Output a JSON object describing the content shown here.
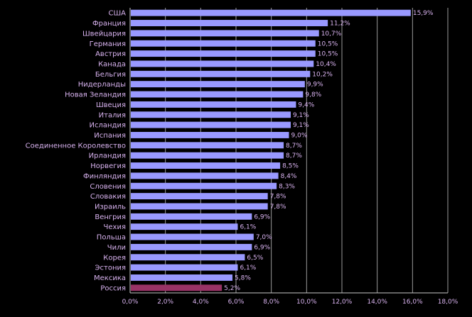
{
  "chart_data": {
    "type": "bar",
    "orientation": "horizontal",
    "categories": [
      "США",
      "Франция",
      "Швейцария",
      "Германия",
      "Австрия",
      "Канада",
      "Бельгия",
      "Нидерланды",
      "Новая Зеландия",
      "Швеция",
      "Италия",
      "Исландия",
      "Испания",
      "Соединенное Королевство",
      "Ирландия",
      "Норвегия",
      "Финляндия",
      "Словения",
      "Словакия",
      "Израиль",
      "Венгрия",
      "Чехия",
      "Польша",
      "Чили",
      "Корея",
      "Эстония",
      "Мексика",
      "Россия"
    ],
    "values": [
      15.9,
      11.2,
      10.7,
      10.5,
      10.5,
      10.4,
      10.2,
      9.9,
      9.8,
      9.4,
      9.1,
      9.1,
      9.0,
      8.7,
      8.7,
      8.5,
      8.4,
      8.3,
      7.8,
      7.8,
      6.9,
      6.1,
      7.0,
      6.9,
      6.5,
      6.1,
      5.8,
      5.2
    ],
    "value_labels": [
      "15,9%",
      "11,2%",
      "10,7%",
      "10,5%",
      "10,5%",
      "10,4%",
      "10,2%",
      "9,9%",
      "9,8%",
      "9,4%",
      "9,1%",
      "9,1%",
      "9,0%",
      "8,7%",
      "8,7%",
      "8,5%",
      "8,4%",
      "8,3%",
      "7,8%",
      "7,8%",
      "6,9%",
      "6,1%",
      "7,0%",
      "6,9%",
      "6,5%",
      "6,1%",
      "5,8%",
      "5,2%"
    ],
    "highlight_category": "Россия",
    "xlim": [
      0,
      18
    ],
    "x_ticks": [
      "0,0%",
      "2,0%",
      "4,0%",
      "6,0%",
      "8,0%",
      "10,0%",
      "12,0%",
      "14,0%",
      "16,0%",
      "18,0%"
    ],
    "grid": "vertical",
    "title": "",
    "xlabel": "",
    "ylabel": "",
    "colors": {
      "bar": "#9999ff",
      "highlight": "#993366",
      "text": "#d9b3f0",
      "background": "#000000",
      "grid": "#9a9a9a"
    }
  }
}
